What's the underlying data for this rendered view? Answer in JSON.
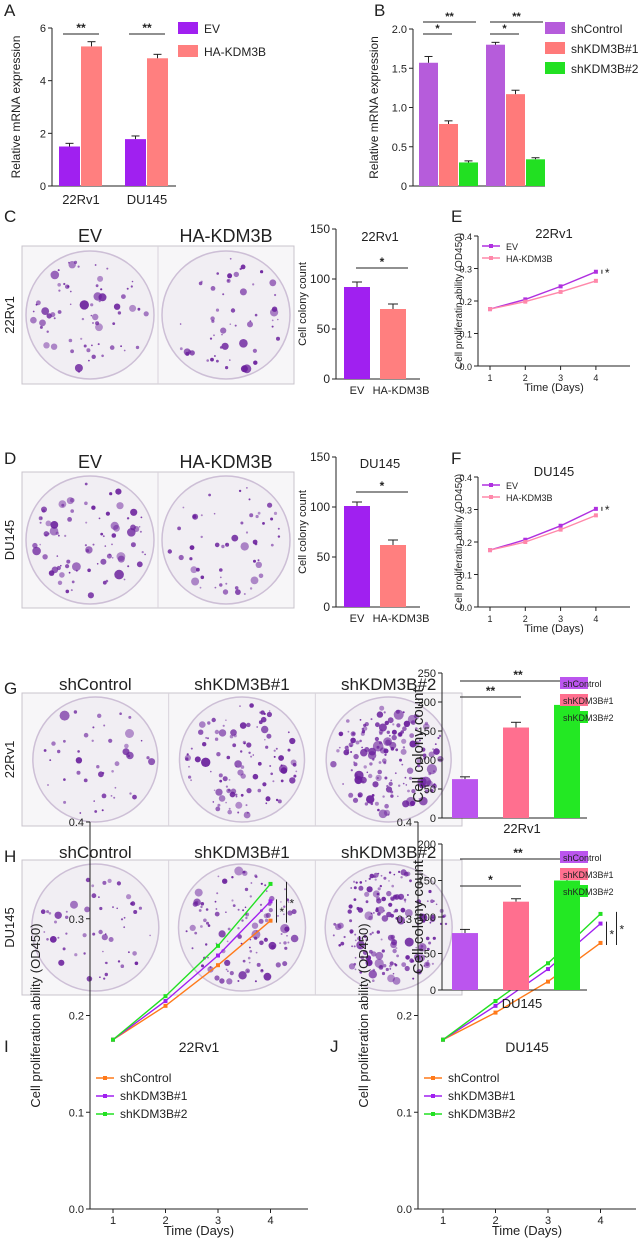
{
  "colors": {
    "ev": "#a020f0",
    "ha": "#ff7f7f",
    "shControl": "#b65cdb",
    "sh1": "#ff7a7a",
    "sh2": "#22e022",
    "shControl_g": "#bb55ee",
    "sh1_g": "#ff6f8f",
    "sh2_g": "#23e823",
    "ev_line": "#b030e0",
    "ha_line": "#ff88aa",
    "line_ctrl": "#ff7a1a",
    "line_sh1": "#a020f0",
    "line_sh2": "#22e022",
    "dish_bg": "#f1eef3",
    "colony": "#6a1f9c"
  },
  "panels": {
    "A": "A",
    "B": "B",
    "C": "C",
    "D": "D",
    "E": "E",
    "F": "F",
    "G": "G",
    "H": "H",
    "I": "I",
    "J": "J"
  },
  "photos": {
    "C": {
      "headers": [
        "EV",
        "HA-KDM3B"
      ],
      "row_label": "22Rv1"
    },
    "D": {
      "headers": [
        "EV",
        "HA-KDM3B"
      ],
      "row_label": "DU145"
    },
    "G": {
      "headers": [
        "shControl",
        "shKDM3B#1",
        "shKDM3B#2"
      ],
      "row_label": "22Rv1"
    },
    "H": {
      "headers": [
        "shControl",
        "shKDM3B#1",
        "shKDM3B#2"
      ],
      "row_label": "DU145"
    }
  },
  "chart_data": [
    {
      "id": "A",
      "type": "bar",
      "categories": [
        "22Rv1",
        "DU145"
      ],
      "series": [
        {
          "name": "EV",
          "values": [
            1.5,
            1.78
          ],
          "errors": [
            0.12,
            0.12
          ]
        },
        {
          "name": "HA-KDM3B",
          "values": [
            5.3,
            4.85
          ],
          "errors": [
            0.18,
            0.15
          ]
        }
      ],
      "ylabel": "Relative mRNA expression",
      "yticks": [
        "0",
        "2",
        "4",
        "6"
      ],
      "ylim": [
        0,
        6
      ],
      "significance": [
        "**",
        "**"
      ],
      "legend": "right"
    },
    {
      "id": "B",
      "type": "bar",
      "categories": [
        "",
        ""
      ],
      "series": [
        {
          "name": "shControl",
          "values": [
            1.57,
            1.8
          ],
          "errors": [
            0.08,
            0.03
          ]
        },
        {
          "name": "shKDM3B#1",
          "values": [
            0.79,
            1.17
          ],
          "errors": [
            0.04,
            0.05
          ]
        },
        {
          "name": "shKDM3B#2",
          "values": [
            0.3,
            0.34
          ],
          "errors": [
            0.02,
            0.02
          ]
        }
      ],
      "ylabel": "Relative mRNA expression",
      "yticks": [
        "0",
        "0.5",
        "1.0",
        "1.5",
        "2.0"
      ],
      "ylim": [
        0,
        2.0
      ],
      "significance": [
        "*",
        "**",
        "*",
        "**"
      ],
      "legend": "right"
    },
    {
      "id": "C_bar",
      "type": "bar",
      "title": "22Rv1",
      "categories": [
        "EV",
        "HA-KDM3B"
      ],
      "values": [
        92,
        70
      ],
      "errors": [
        5,
        5
      ],
      "ylabel": "Cell colony count",
      "yticks": [
        "0",
        "50",
        "100",
        "150"
      ],
      "ylim": [
        0,
        150
      ],
      "significance": [
        "*"
      ]
    },
    {
      "id": "D_bar",
      "type": "bar",
      "title": "DU145",
      "categories": [
        "EV",
        "HA-KDM3B"
      ],
      "values": [
        101,
        62
      ],
      "errors": [
        4,
        5
      ],
      "ylabel": "Cell colony count",
      "yticks": [
        "0",
        "50",
        "100",
        "150"
      ],
      "ylim": [
        0,
        150
      ],
      "significance": [
        "*"
      ]
    },
    {
      "id": "E",
      "type": "line",
      "title": "22Rv1",
      "x": [
        1,
        2,
        3,
        4
      ],
      "series": [
        {
          "name": "EV",
          "values": [
            0.175,
            0.205,
            0.245,
            0.29
          ]
        },
        {
          "name": "HA-KDM3B",
          "values": [
            0.175,
            0.198,
            0.228,
            0.262
          ]
        }
      ],
      "xlabel": "Time (Days)",
      "ylabel": "Cell proliferatin ability (OD450)",
      "xticks": [
        "1",
        "2",
        "3",
        "4"
      ],
      "yticks": [
        "0.0",
        "0.1",
        "0.2",
        "0.3",
        "0.4"
      ],
      "ylim": [
        0,
        0.4
      ],
      "significance": [
        "*"
      ],
      "legend": "top-left"
    },
    {
      "id": "F",
      "type": "line",
      "title": "DU145",
      "x": [
        1,
        2,
        3,
        4
      ],
      "series": [
        {
          "name": "EV",
          "values": [
            0.175,
            0.207,
            0.25,
            0.302
          ]
        },
        {
          "name": "HA-KDM3B",
          "values": [
            0.175,
            0.2,
            0.238,
            0.282
          ]
        }
      ],
      "xlabel": "Time (Days)",
      "ylabel": "Cell proliferatin ability (OD450)",
      "xticks": [
        "1",
        "2",
        "3",
        "4"
      ],
      "yticks": [
        "0.0",
        "0.1",
        "0.2",
        "0.3",
        "0.4"
      ],
      "ylim": [
        0,
        0.4
      ],
      "significance": [
        "*"
      ],
      "legend": "top-left"
    },
    {
      "id": "G_bar",
      "type": "bar",
      "xcaption": "22Rv1",
      "categories": [
        "shControl",
        "shKDM3B#1",
        "shKDM3B#2"
      ],
      "values": [
        67,
        156,
        195
      ],
      "errors": [
        4,
        9,
        8
      ],
      "ylabel": "Cell colony count",
      "yticks": [
        "0",
        "50",
        "100",
        "150",
        "200",
        "250"
      ],
      "ylim": [
        0,
        250
      ],
      "significance": [
        "**",
        "**"
      ],
      "legend": "top-right"
    },
    {
      "id": "H_bar",
      "type": "bar",
      "xcaption": "DU145",
      "categories": [
        "shControl",
        "shKDM3B#1",
        "shKDM3B#2"
      ],
      "values": [
        78,
        121,
        150
      ],
      "errors": [
        5,
        4,
        4
      ],
      "ylabel": "Cell colony count",
      "yticks": [
        "0",
        "50",
        "100",
        "150",
        "200"
      ],
      "ylim": [
        0,
        200
      ],
      "significance": [
        "*",
        "**"
      ],
      "legend": "top-right"
    },
    {
      "id": "I",
      "type": "line",
      "title": "22Rv1",
      "x": [
        1,
        2,
        3,
        4
      ],
      "series": [
        {
          "name": "shControl",
          "values": [
            0.175,
            0.21,
            0.252,
            0.298
          ]
        },
        {
          "name": "shKDM3B#1",
          "values": [
            0.175,
            0.215,
            0.262,
            0.318
          ]
        },
        {
          "name": "shKDM3B#2",
          "values": [
            0.175,
            0.22,
            0.272,
            0.336
          ]
        }
      ],
      "xlabel": "Time (Days)",
      "ylabel": "Cell proliferation ability (OD450)",
      "xticks": [
        "1",
        "2",
        "3",
        "4"
      ],
      "yticks": [
        "0.0",
        "0.1",
        "0.2",
        "0.3",
        "0.4"
      ],
      "ylim": [
        0,
        0.4
      ],
      "significance": [
        "*",
        "*"
      ],
      "legend": "top-left"
    },
    {
      "id": "J",
      "type": "line",
      "title": "DU145",
      "x": [
        1,
        2,
        3,
        4
      ],
      "series": [
        {
          "name": "shControl",
          "values": [
            0.175,
            0.203,
            0.235,
            0.275
          ]
        },
        {
          "name": "shKDM3B#1",
          "values": [
            0.175,
            0.21,
            0.248,
            0.295
          ]
        },
        {
          "name": "shKDM3B#2",
          "values": [
            0.175,
            0.215,
            0.254,
            0.305
          ]
        }
      ],
      "xlabel": "Time (Days)",
      "ylabel": "Cell proliferation ability (OD450)",
      "xticks": [
        "1",
        "2",
        "3",
        "4"
      ],
      "yticks": [
        "0.0",
        "0.1",
        "0.2",
        "0.3",
        "0.4"
      ],
      "ylim": [
        0,
        0.4
      ],
      "significance": [
        "*",
        "*"
      ],
      "legend": "top-left"
    }
  ]
}
